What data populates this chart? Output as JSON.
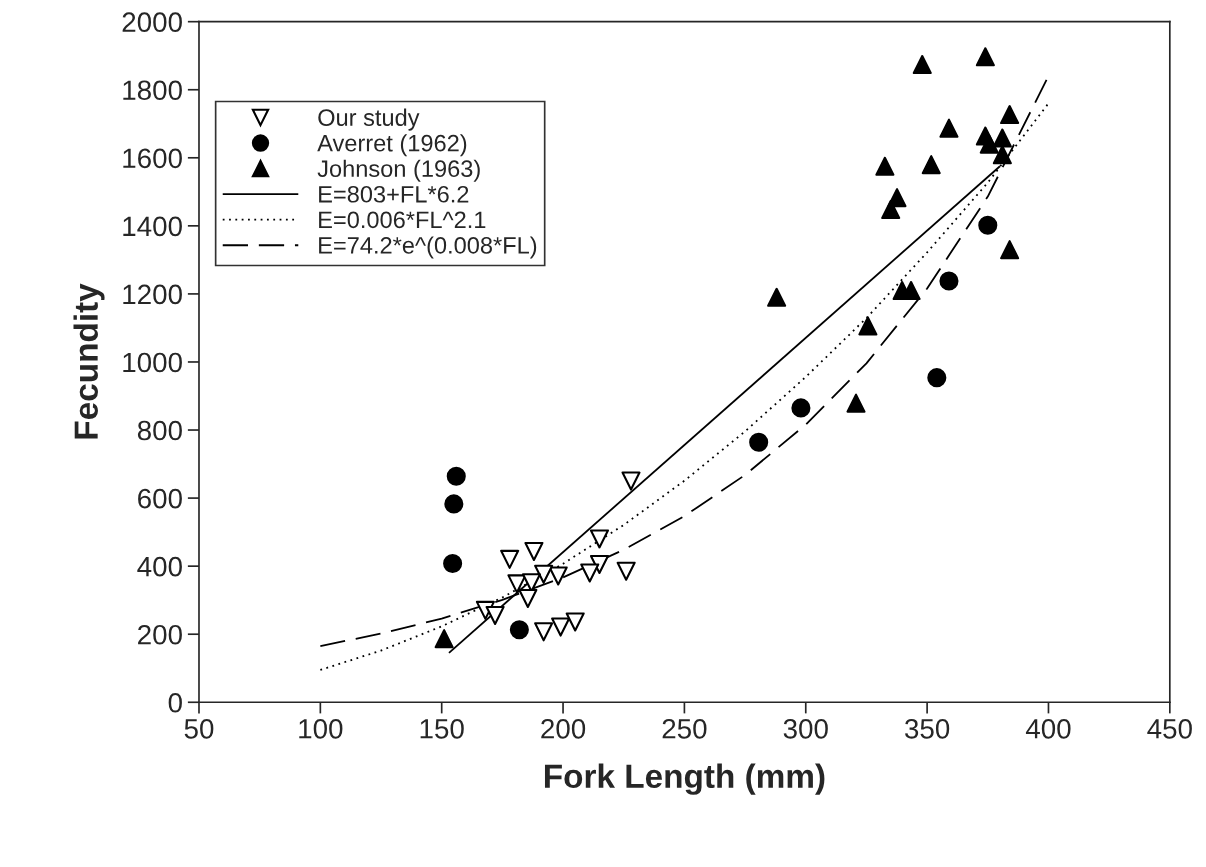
{
  "chart_data": {
    "type": "scatter",
    "xlabel": "Fork Length (mm)",
    "ylabel": "Fecundity",
    "xlim": [
      50,
      450
    ],
    "ylim": [
      0,
      2000
    ],
    "xticks": [
      50,
      100,
      150,
      200,
      250,
      300,
      350,
      400,
      450
    ],
    "yticks": [
      0,
      200,
      400,
      600,
      800,
      1000,
      1200,
      1400,
      1600,
      1800,
      2000
    ],
    "grid": false,
    "legend": "top left",
    "series": [
      {
        "name": "Our study",
        "marker": "triangle_down",
        "color": "#000000",
        "x": [
          228,
          215,
          188,
          178,
          226,
          215,
          211,
          198,
          192,
          181,
          187,
          185.5,
          168,
          172,
          190,
          192,
          199,
          205
        ],
        "values": [
          650,
          480,
          443,
          420,
          385,
          405,
          380,
          371,
          376,
          348,
          351,
          305,
          270,
          255,
          null,
          207,
          221,
          236
        ]
      },
      {
        "name": "Averret (1962)",
        "marker": "circle",
        "color": "#000000",
        "x": [
          156,
          155,
          154.5,
          182,
          280.6,
          298,
          354,
          359,
          375
        ],
        "values": [
          664,
          583,
          408,
          213,
          764,
          865,
          954,
          1238,
          1402
        ]
      },
      {
        "name": "Johnson (1963)",
        "marker": "triangle",
        "color": "#000000",
        "x": [
          151,
          288,
          320.7,
          325.6,
          339.7,
          343.4,
          335,
          337.6,
          332.6,
          351.7,
          384,
          348,
          374,
          384,
          359,
          374,
          381,
          375.6,
          381
        ],
        "values": [
          187,
          1190,
          879,
          1106,
          1210,
          1210,
          1448,
          1483,
          1575,
          1580,
          1330,
          1874,
          1897,
          1727,
          1687,
          1664,
          1658,
          1640,
          1609
        ]
      },
      {
        "name": "E=803+FL*6.2",
        "type": "line",
        "line_style": "solid",
        "marker": "none",
        "color": "#000000",
        "x": [
          153,
          380
        ],
        "values": [
          145,
          1575
        ]
      },
      {
        "name": "E=0.006*FL^2.1",
        "type": "line",
        "line_style": "dotted",
        "marker": "none",
        "color": "#000000",
        "x": [
          100,
          125,
          150,
          175,
          200,
          225,
          250,
          275,
          300,
          325,
          350,
          375,
          400
        ],
        "values": [
          95,
          152,
          223,
          308,
          407,
          521,
          651,
          796,
          956,
          1129,
          1322,
          1527,
          1760
        ]
      },
      {
        "name": "E=74.2*e^(0.008*FL)",
        "type": "line",
        "line_style": "dashed",
        "marker": "none",
        "color": "#000000",
        "x": [
          100,
          125,
          150,
          175,
          200,
          225,
          250,
          275,
          300,
          325,
          350,
          375,
          400
        ],
        "values": [
          165,
          202,
          246,
          301,
          367,
          448,
          547,
          668,
          816,
          996,
          1216,
          1486,
          1840
        ]
      }
    ]
  }
}
